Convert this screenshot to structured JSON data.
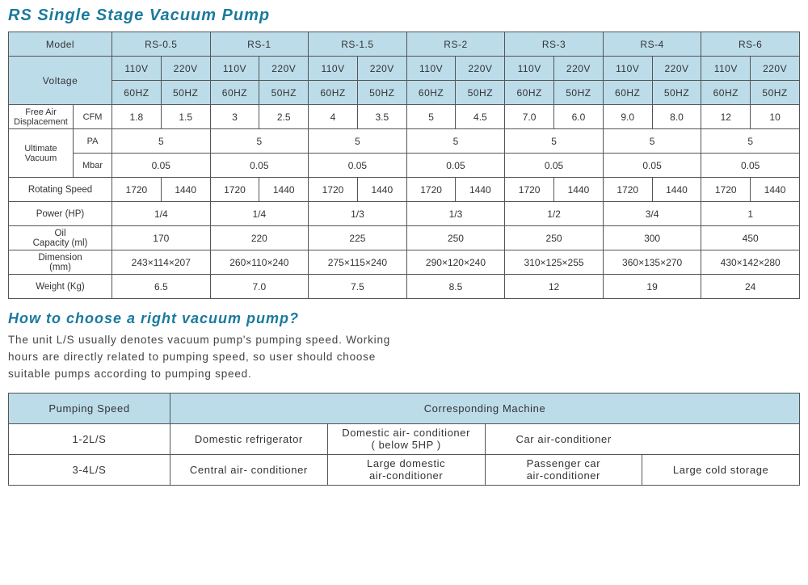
{
  "title": "RS Single Stage Vacuum Pump",
  "spec": {
    "headers": {
      "model": "Model",
      "voltage": "Voltage"
    },
    "models": [
      "RS-0.5",
      "RS-1",
      "RS-1.5",
      "RS-2",
      "RS-3",
      "RS-4",
      "RS-6"
    ],
    "volts_top": [
      "110V",
      "220V",
      "110V",
      "220V",
      "110V",
      "220V",
      "110V",
      "220V",
      "110V",
      "220V",
      "110V",
      "220V",
      "110V",
      "220V"
    ],
    "volts_bot": [
      "60HZ",
      "50HZ",
      "60HZ",
      "50HZ",
      "60HZ",
      "50HZ",
      "60HZ",
      "50HZ",
      "60HZ",
      "50HZ",
      "60HZ",
      "50HZ",
      "60HZ",
      "50HZ"
    ],
    "rows": {
      "fad_label": "Free Air\nDisplacement",
      "fad_unit": "CFM",
      "fad": [
        "1.8",
        "1.5",
        "3",
        "2.5",
        "4",
        "3.5",
        "5",
        "4.5",
        "7.0",
        "6.0",
        "9.0",
        "8.0",
        "12",
        "10"
      ],
      "uv_label": "Ultimate\nVacuum",
      "pa_unit": "PA",
      "mbar_unit": "Mbar",
      "pa": [
        "5",
        "5",
        "5",
        "5",
        "5",
        "5",
        "5"
      ],
      "mbar": [
        "0.05",
        "0.05",
        "0.05",
        "0.05",
        "0.05",
        "0.05",
        "0.05"
      ],
      "rot_label": "Rotating Speed",
      "rot": [
        "1720",
        "1440",
        "1720",
        "1440",
        "1720",
        "1440",
        "1720",
        "1440",
        "1720",
        "1440",
        "1720",
        "1440",
        "1720",
        "1440"
      ],
      "pwr_label": "Power (HP)",
      "pwr": [
        "1/4",
        "1/4",
        "1/3",
        "1/3",
        "1/2",
        "3/4",
        "1"
      ],
      "oil_label": "Oil\nCapacity (ml)",
      "oil": [
        "170",
        "220",
        "225",
        "250",
        "250",
        "300",
        "450"
      ],
      "dim_label": "Dimension\n(mm)",
      "dim": [
        "243×114×207",
        "260×110×240",
        "275×115×240",
        "290×120×240",
        "310×125×255",
        "360×135×270",
        "430×142×280"
      ],
      "wt_label": "Weight (Kg)",
      "wt": [
        "6.5",
        "7.0",
        "7.5",
        "8.5",
        "12",
        "19",
        "24"
      ]
    }
  },
  "guide": {
    "heading": "How to choose a right vacuum pump?",
    "text": "The unit L/S usually denotes vacuum pump's pumping speed. Working hours are directly related to pumping speed, so user should choose suitable pumps according to pumping speed.",
    "headers": {
      "speed": "Pumping Speed",
      "machine": "Corresponding Machine"
    },
    "rows": [
      {
        "speed": "1-2L/S",
        "cells": [
          "Domestic refrigerator",
          "Domestic air- conditioner\n( below 5HP )",
          "Car air-conditioner",
          ""
        ]
      },
      {
        "speed": "3-4L/S",
        "cells": [
          "Central air- conditioner",
          "Large domestic\nair-conditioner",
          "Passenger car\nair-conditioner",
          "Large cold storage"
        ]
      }
    ]
  },
  "colors": {
    "heading": "#1a7a9e",
    "header_bg": "#bcdcea",
    "header_fg": "#1e5b78",
    "border": "#555555",
    "bg": "#ffffff"
  }
}
